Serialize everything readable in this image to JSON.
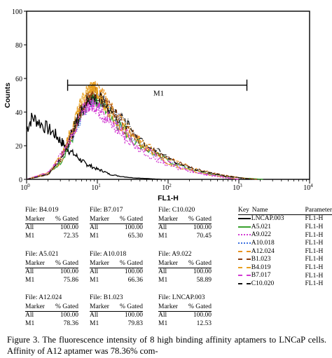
{
  "chart_data": {
    "type": "line",
    "title": "",
    "xlabel": "FL1-H",
    "ylabel": "Counts",
    "xscale": "log",
    "xlim": [
      1,
      10000
    ],
    "ylim": [
      0,
      100
    ],
    "x_ticks": [
      {
        "base": "10",
        "exp": "0",
        "value": 1
      },
      {
        "base": "10",
        "exp": "1",
        "value": 10
      },
      {
        "base": "10",
        "exp": "2",
        "value": 100
      },
      {
        "base": "10",
        "exp": "3",
        "value": 1000
      },
      {
        "base": "10",
        "exp": "4",
        "value": 10000
      }
    ],
    "y_ticks": [
      "0",
      "20",
      "40",
      "60",
      "80",
      "100"
    ],
    "y_tick_values": [
      0,
      20,
      40,
      60,
      80,
      100
    ],
    "gate": {
      "label": "M1",
      "x_start": 3.8,
      "x_end": 1300,
      "y": 56
    },
    "series": [
      {
        "name": "LNCAP.003",
        "color": "#000000",
        "dash": "solid",
        "x": [
          1,
          1.2,
          1.5,
          2,
          2.5,
          3,
          3.5,
          4,
          5,
          6,
          7,
          8,
          10,
          12,
          15,
          20,
          30,
          50,
          80
        ],
        "y": [
          30,
          37,
          34,
          30,
          27,
          23,
          20,
          17,
          14,
          11,
          9,
          8,
          6,
          5,
          3,
          2,
          1,
          0.5,
          0
        ]
      },
      {
        "name": "A5.021",
        "color": "#3aa12e",
        "dash": "solid",
        "x": [
          1,
          2,
          3,
          4,
          5,
          6,
          7,
          8,
          9,
          10,
          12,
          15,
          20,
          30,
          50,
          80,
          150,
          300,
          600,
          1000,
          1500,
          2200
        ],
        "y": [
          0,
          3,
          10,
          20,
          30,
          38,
          44,
          47,
          48,
          47,
          44,
          39,
          33,
          25,
          18,
          13,
          8,
          4,
          2,
          1,
          0.5,
          0
        ]
      },
      {
        "name": "A9.022",
        "color": "#d23ad2",
        "dash": "2,2",
        "x": [
          1,
          2,
          3,
          4,
          5,
          6,
          7,
          8,
          9,
          10,
          12,
          15,
          20,
          30,
          50,
          80,
          150,
          300,
          600,
          1000
        ],
        "y": [
          0,
          4,
          14,
          26,
          34,
          40,
          44,
          45,
          44,
          42,
          38,
          33,
          28,
          21,
          15,
          10,
          6,
          3,
          1,
          0
        ]
      },
      {
        "name": "A10.018",
        "color": "#3a6fe0",
        "dash": "1,2",
        "x": [
          1,
          2,
          3,
          4,
          5,
          6,
          7,
          8,
          10,
          12,
          15,
          20,
          30,
          50,
          80,
          150,
          300,
          600,
          1000
        ],
        "y": [
          0,
          3,
          11,
          22,
          31,
          38,
          43,
          46,
          47,
          45,
          41,
          35,
          27,
          19,
          13,
          8,
          4,
          1.5,
          0
        ]
      },
      {
        "name": "A12.024",
        "color": "#e89320",
        "dash": "4,2",
        "x": [
          1,
          2,
          3,
          4,
          5,
          6,
          7,
          8,
          9,
          10,
          12,
          15,
          20,
          30,
          50,
          80,
          150,
          300,
          600,
          1000,
          1800
        ],
        "y": [
          0,
          3,
          10,
          22,
          33,
          42,
          48,
          53,
          55,
          54,
          50,
          44,
          37,
          28,
          20,
          14,
          9,
          5,
          2.5,
          1,
          0
        ]
      },
      {
        "name": "B1.023",
        "color": "#8a3a10",
        "dash": "5,2",
        "x": [
          1,
          2,
          3,
          4,
          5,
          6,
          7,
          8,
          9,
          10,
          12,
          15,
          20,
          30,
          50,
          80,
          150,
          300,
          600,
          1000,
          1800
        ],
        "y": [
          0,
          3,
          12,
          24,
          34,
          42,
          47,
          50,
          51,
          50,
          47,
          42,
          36,
          27,
          19,
          14,
          9,
          5,
          2.5,
          1,
          0
        ]
      },
      {
        "name": "B4.019",
        "color": "#e8a020",
        "dash": "6,1",
        "x": [
          1,
          2,
          3,
          4,
          5,
          6,
          7,
          8,
          9,
          10,
          12,
          15,
          20,
          30,
          50,
          80,
          150,
          300,
          600,
          1000
        ],
        "y": [
          0,
          4,
          13,
          26,
          37,
          46,
          52,
          55,
          54,
          51,
          46,
          40,
          34,
          25,
          18,
          12,
          7,
          3.5,
          1.5,
          0
        ]
      },
      {
        "name": "B7.017",
        "color": "#d23ad2",
        "dash": "6,2,1,2",
        "x": [
          1,
          2,
          3,
          4,
          5,
          6,
          7,
          8,
          10,
          12,
          15,
          20,
          30,
          50,
          80,
          150,
          300,
          600,
          1000
        ],
        "y": [
          0,
          4,
          12,
          23,
          32,
          39,
          43,
          45,
          44,
          41,
          37,
          31,
          24,
          17,
          12,
          7,
          3.5,
          1.5,
          0
        ]
      },
      {
        "name": "C10.020",
        "color": "#111111",
        "dash": "6,2,1,2",
        "x": [
          1,
          2,
          3,
          4,
          5,
          6,
          7,
          8,
          10,
          12,
          15,
          20,
          30,
          50,
          80,
          150,
          300,
          600,
          1000,
          1500
        ],
        "y": [
          0,
          3,
          11,
          23,
          33,
          41,
          46,
          48,
          48,
          46,
          42,
          37,
          30,
          21,
          15,
          9,
          5,
          2,
          1,
          0
        ]
      }
    ]
  },
  "stats_header": {
    "marker": "Marker",
    "gated": "% Gated"
  },
  "stats": [
    {
      "file": "File: B4.019",
      "rows": [
        {
          "m": "All",
          "v": "100.00"
        },
        {
          "m": "M1",
          "v": "72.35"
        }
      ]
    },
    {
      "file": "File: B7.017",
      "rows": [
        {
          "m": "All",
          "v": "100.00"
        },
        {
          "m": "M1",
          "v": "65.30"
        }
      ]
    },
    {
      "file": "File: C10.020",
      "rows": [
        {
          "m": "All",
          "v": "100.00"
        },
        {
          "m": "M1",
          "v": "70.45"
        }
      ]
    },
    {
      "file": "File: A5.021",
      "rows": [
        {
          "m": "All",
          "v": "100.00"
        },
        {
          "m": "M1",
          "v": "75.86"
        }
      ]
    },
    {
      "file": "File: A10.018",
      "rows": [
        {
          "m": "All",
          "v": "100.00"
        },
        {
          "m": "M1",
          "v": "66.36"
        }
      ]
    },
    {
      "file": "File: A9.022",
      "rows": [
        {
          "m": "All",
          "v": "100.00"
        },
        {
          "m": "M1",
          "v": "58.89"
        }
      ]
    },
    {
      "file": "File: A12.024",
      "rows": [
        {
          "m": "All",
          "v": "100.00"
        },
        {
          "m": "M1",
          "v": "78.36"
        }
      ]
    },
    {
      "file": "File: B1.023",
      "rows": [
        {
          "m": "All",
          "v": "100.00"
        },
        {
          "m": "M1",
          "v": "79.83"
        }
      ]
    },
    {
      "file": "File: LNCAP.003",
      "rows": [
        {
          "m": "All",
          "v": "100.00"
        },
        {
          "m": "M1",
          "v": "12.53"
        }
      ]
    }
  ],
  "key": {
    "headers": {
      "key": "Key",
      "name": "Name",
      "param": "Parameter"
    },
    "items": [
      {
        "name": "LNCAP.003",
        "param": "FL1-H",
        "color": "#000000",
        "style": "solid"
      },
      {
        "name": "A5.021",
        "param": "FL1-H",
        "color": "#3aa12e",
        "style": "solid"
      },
      {
        "name": "A9.022",
        "param": "FL1-H",
        "color": "#d23ad2",
        "style": "dotted"
      },
      {
        "name": "A10.018",
        "param": "FL1-H",
        "color": "#3a6fe0",
        "style": "dotted"
      },
      {
        "name": "A12.024",
        "param": "FL1-H",
        "color": "#e89320",
        "style": "dashed"
      },
      {
        "name": "B1.023",
        "param": "FL1-H",
        "color": "#8a3a10",
        "style": "dashed"
      },
      {
        "name": "B4.019",
        "param": "FL1-H",
        "color": "#e8a020",
        "style": "dashed"
      },
      {
        "name": "B7.017",
        "param": "FL1-H",
        "color": "#d23ad2",
        "style": "dashed"
      },
      {
        "name": "C10.020",
        "param": "FL1-H",
        "color": "#111111",
        "style": "dashed"
      }
    ]
  },
  "caption": "Figure 3. The fluorescence intensity of 8 high binding affinity aptamers to LNCaP cells. Affinity of A12 aptamer was 78.36% com-"
}
